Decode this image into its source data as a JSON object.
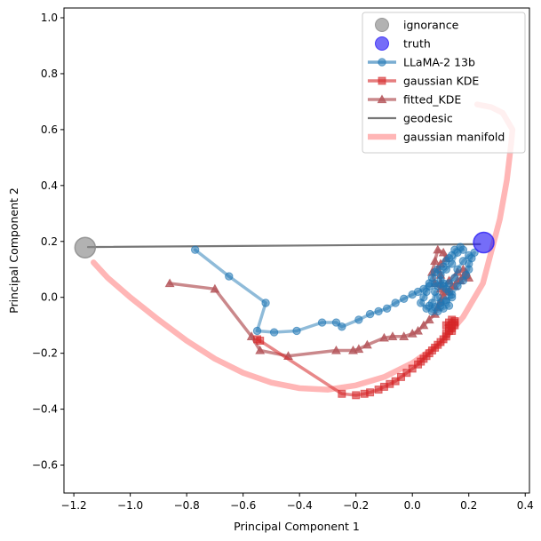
{
  "chart_data": {
    "type": "line",
    "title": "",
    "xlabel": "Principal Component 1",
    "ylabel": "Principal Component 2",
    "xlim": [
      -1.235,
      0.415
    ],
    "ylim": [
      -0.7,
      1.035
    ],
    "xticks": [
      -1.2,
      -1.0,
      -0.8,
      -0.6,
      -0.4,
      -0.2,
      0.0,
      0.2,
      0.4
    ],
    "xtick_labels": [
      "−1.2",
      "−1.0",
      "−0.8",
      "−0.6",
      "−0.4",
      "−0.2",
      "0.0",
      "0.2",
      "0.4"
    ],
    "yticks": [
      -0.6,
      -0.4,
      -0.2,
      0.0,
      0.2,
      0.4,
      0.6,
      0.8,
      1.0
    ],
    "ytick_labels": [
      "−0.6",
      "−0.4",
      "−0.2",
      "0.0",
      "0.2",
      "0.4",
      "0.6",
      "0.8",
      "1.0"
    ],
    "grid": false,
    "legend_position": "top-right",
    "series": [
      {
        "name": "gaussian manifold",
        "kind": "line",
        "color": "#ff9d9d",
        "points": [
          [
            -1.13,
            0.125
          ],
          [
            -1.08,
            0.07
          ],
          [
            -1.0,
            0.0
          ],
          [
            -0.9,
            -0.08
          ],
          [
            -0.8,
            -0.155
          ],
          [
            -0.7,
            -0.22
          ],
          [
            -0.6,
            -0.27
          ],
          [
            -0.5,
            -0.305
          ],
          [
            -0.4,
            -0.325
          ],
          [
            -0.3,
            -0.33
          ],
          [
            -0.2,
            -0.315
          ],
          [
            -0.1,
            -0.285
          ],
          [
            0.0,
            -0.235
          ],
          [
            0.1,
            -0.165
          ],
          [
            0.18,
            -0.07
          ],
          [
            0.25,
            0.05
          ],
          [
            0.31,
            0.28
          ],
          [
            0.335,
            0.42
          ],
          [
            0.35,
            0.55
          ],
          [
            0.355,
            0.6
          ],
          [
            0.32,
            0.66
          ],
          [
            0.28,
            0.68
          ],
          [
            0.23,
            0.69
          ]
        ]
      },
      {
        "name": "geodesic",
        "kind": "line",
        "color": "#777777",
        "points": [
          [
            -1.15,
            0.18
          ],
          [
            0.24,
            0.19
          ]
        ]
      },
      {
        "name": "fitted_KDE",
        "kind": "line-marker-triangle",
        "color": "#b4555a",
        "points": [
          [
            -0.86,
            0.05
          ],
          [
            -0.7,
            0.03
          ],
          [
            -0.57,
            -0.14
          ],
          [
            -0.54,
            -0.19
          ],
          [
            -0.44,
            -0.21
          ],
          [
            -0.27,
            -0.19
          ],
          [
            -0.21,
            -0.19
          ],
          [
            -0.19,
            -0.185
          ],
          [
            -0.16,
            -0.17
          ],
          [
            -0.1,
            -0.145
          ],
          [
            -0.07,
            -0.14
          ],
          [
            -0.03,
            -0.14
          ],
          [
            0.0,
            -0.13
          ],
          [
            0.02,
            -0.12
          ],
          [
            0.04,
            -0.1
          ],
          [
            0.06,
            -0.08
          ],
          [
            0.08,
            -0.06
          ],
          [
            0.09,
            -0.035
          ],
          [
            0.1,
            -0.015
          ],
          [
            0.11,
            0.005
          ],
          [
            0.12,
            0.02
          ],
          [
            0.14,
            0.04
          ],
          [
            0.16,
            0.06
          ],
          [
            0.18,
            0.075
          ],
          [
            0.19,
            0.09
          ],
          [
            0.18,
            0.1
          ],
          [
            0.16,
            0.09
          ],
          [
            0.13,
            0.06
          ],
          [
            0.11,
            0.02
          ],
          [
            0.1,
            0.05
          ],
          [
            0.1,
            0.08
          ],
          [
            0.09,
            0.1
          ],
          [
            0.1,
            0.12
          ],
          [
            0.12,
            0.14
          ],
          [
            0.11,
            0.16
          ],
          [
            0.09,
            0.17
          ],
          [
            0.08,
            0.13
          ],
          [
            0.07,
            0.09
          ],
          [
            0.08,
            0.05
          ],
          [
            0.1,
            0.03
          ],
          [
            0.13,
            0.02
          ],
          [
            0.15,
            0.04
          ],
          [
            0.17,
            0.06
          ],
          [
            0.19,
            0.08
          ],
          [
            0.2,
            0.07
          ]
        ]
      },
      {
        "name": "gaussian KDE",
        "kind": "line-marker-square",
        "color": "#d62728",
        "points": [
          [
            -0.55,
            -0.15
          ],
          [
            -0.54,
            -0.155
          ],
          [
            -0.25,
            -0.345
          ],
          [
            -0.2,
            -0.35
          ],
          [
            -0.17,
            -0.345
          ],
          [
            -0.15,
            -0.34
          ],
          [
            -0.12,
            -0.33
          ],
          [
            -0.1,
            -0.32
          ],
          [
            -0.08,
            -0.31
          ],
          [
            -0.06,
            -0.3
          ],
          [
            -0.04,
            -0.285
          ],
          [
            -0.02,
            -0.27
          ],
          [
            0.0,
            -0.255
          ],
          [
            0.02,
            -0.24
          ],
          [
            0.03,
            -0.23
          ],
          [
            0.04,
            -0.22
          ],
          [
            0.05,
            -0.21
          ],
          [
            0.06,
            -0.2
          ],
          [
            0.07,
            -0.19
          ],
          [
            0.08,
            -0.18
          ],
          [
            0.09,
            -0.17
          ],
          [
            0.1,
            -0.16
          ],
          [
            0.11,
            -0.15
          ],
          [
            0.12,
            -0.14
          ],
          [
            0.12,
            -0.13
          ],
          [
            0.13,
            -0.12
          ],
          [
            0.14,
            -0.11
          ],
          [
            0.14,
            -0.1
          ],
          [
            0.15,
            -0.09
          ],
          [
            0.15,
            -0.085
          ],
          [
            0.14,
            -0.08
          ],
          [
            0.13,
            -0.09
          ],
          [
            0.12,
            -0.1
          ],
          [
            0.13,
            -0.11
          ],
          [
            0.14,
            -0.12
          ],
          [
            0.15,
            -0.1
          ]
        ]
      },
      {
        "name": "LLaMA-2 13b",
        "kind": "line-marker-circle",
        "color": "#1f77b4",
        "points": [
          [
            -0.77,
            0.17
          ],
          [
            -0.65,
            0.075
          ],
          [
            -0.52,
            -0.02
          ],
          [
            -0.55,
            -0.12
          ],
          [
            -0.49,
            -0.125
          ],
          [
            -0.41,
            -0.12
          ],
          [
            -0.32,
            -0.09
          ],
          [
            -0.27,
            -0.09
          ],
          [
            -0.25,
            -0.105
          ],
          [
            -0.19,
            -0.08
          ],
          [
            -0.15,
            -0.06
          ],
          [
            -0.12,
            -0.05
          ],
          [
            -0.09,
            -0.04
          ],
          [
            -0.06,
            -0.02
          ],
          [
            -0.03,
            -0.005
          ],
          [
            0.0,
            0.01
          ],
          [
            0.02,
            0.02
          ],
          [
            0.04,
            0.03
          ],
          [
            0.06,
            0.05
          ],
          [
            0.07,
            0.07
          ],
          [
            0.08,
            0.09
          ],
          [
            0.09,
            0.1
          ],
          [
            0.11,
            0.11
          ],
          [
            0.12,
            0.13
          ],
          [
            0.13,
            0.14
          ],
          [
            0.14,
            0.15
          ],
          [
            0.15,
            0.17
          ],
          [
            0.17,
            0.18
          ],
          [
            0.18,
            0.17
          ],
          [
            0.16,
            0.16
          ],
          [
            0.14,
            0.12
          ],
          [
            0.12,
            0.1
          ],
          [
            0.1,
            0.08
          ],
          [
            0.1,
            0.06
          ],
          [
            0.11,
            0.05
          ],
          [
            0.12,
            0.03
          ],
          [
            0.13,
            0.02
          ],
          [
            0.14,
            0.0
          ],
          [
            0.12,
            -0.01
          ],
          [
            0.1,
            -0.02
          ],
          [
            0.09,
            0.0
          ],
          [
            0.08,
            0.02
          ],
          [
            0.07,
            -0.02
          ],
          [
            0.06,
            -0.03
          ],
          [
            0.08,
            -0.035
          ],
          [
            0.1,
            -0.03
          ],
          [
            0.12,
            -0.015
          ],
          [
            0.14,
            0.01
          ],
          [
            0.16,
            0.04
          ],
          [
            0.18,
            0.06
          ],
          [
            0.19,
            0.08
          ],
          [
            0.2,
            0.1
          ],
          [
            0.2,
            0.12
          ],
          [
            0.21,
            0.14
          ],
          [
            0.22,
            0.16
          ],
          [
            0.2,
            0.15
          ],
          [
            0.18,
            0.13
          ],
          [
            0.16,
            0.1
          ],
          [
            0.15,
            0.07
          ],
          [
            0.13,
            0.05
          ],
          [
            0.11,
            0.04
          ],
          [
            0.09,
            0.04
          ],
          [
            0.08,
            0.05
          ],
          [
            0.06,
            0.04
          ],
          [
            0.05,
            0.02
          ],
          [
            0.04,
            0.0
          ],
          [
            0.03,
            -0.02
          ],
          [
            0.05,
            -0.04
          ],
          [
            0.07,
            -0.05
          ],
          [
            0.09,
            -0.05
          ],
          [
            0.11,
            -0.04
          ],
          [
            0.13,
            -0.03
          ]
        ]
      },
      {
        "name": "ignorance",
        "kind": "point",
        "color": "#888888",
        "points": [
          [
            -1.16,
            0.178
          ]
        ]
      },
      {
        "name": "truth",
        "kind": "point",
        "color": "#2b1ef5",
        "points": [
          [
            0.253,
            0.196
          ]
        ]
      }
    ],
    "legend": [
      {
        "name": "ignorance",
        "kind": "point",
        "color": "#888888"
      },
      {
        "name": "truth",
        "kind": "point",
        "color": "#2b1ef5"
      },
      {
        "name": "LLaMA-2 13b",
        "kind": "line-marker-circle",
        "color": "#1f77b4"
      },
      {
        "name": "gaussian KDE",
        "kind": "line-marker-square",
        "color": "#d62728"
      },
      {
        "name": "fitted_KDE",
        "kind": "line-marker-triangle",
        "color": "#b4555a"
      },
      {
        "name": "geodesic",
        "kind": "line",
        "color": "#777777"
      },
      {
        "name": "gaussian manifold",
        "kind": "line",
        "color": "#ff9d9d"
      }
    ]
  }
}
